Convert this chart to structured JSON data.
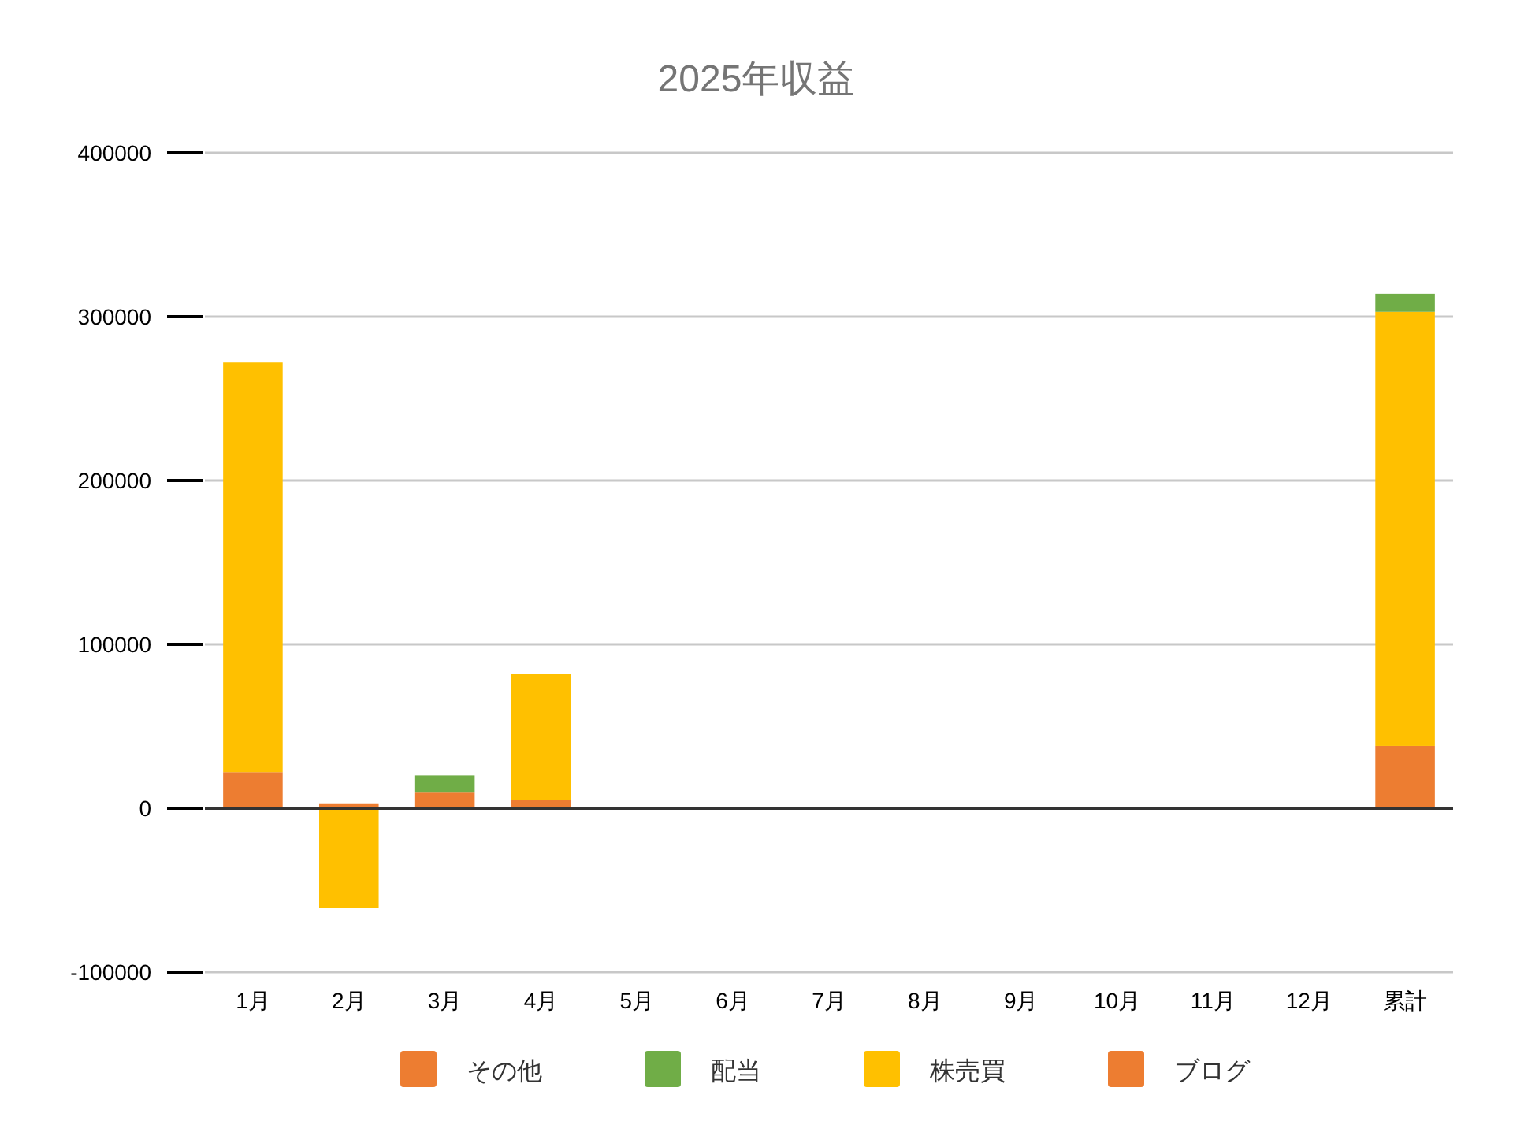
{
  "chart_data": {
    "type": "bar",
    "title": "2025年収益",
    "stacked": true,
    "categories": [
      "1月",
      "2月",
      "3月",
      "4月",
      "5月",
      "6月",
      "7月",
      "8月",
      "9月",
      "10月",
      "11月",
      "12月",
      "累計"
    ],
    "series": [
      {
        "name": "ブログ",
        "color": "#ed7d31",
        "values": [
          22000,
          3000,
          10000,
          5000,
          0,
          0,
          0,
          0,
          0,
          0,
          0,
          0,
          38000
        ]
      },
      {
        "name": "株売買",
        "color": "#ffc000",
        "values": [
          250000,
          -61000,
          0,
          77000,
          0,
          0,
          0,
          0,
          0,
          0,
          0,
          0,
          265000
        ]
      },
      {
        "name": "配当",
        "color": "#70ad47",
        "values": [
          0,
          0,
          10000,
          0,
          0,
          0,
          0,
          0,
          0,
          0,
          0,
          0,
          11000
        ]
      },
      {
        "name": "その他",
        "color": "#ed7d31",
        "values": [
          0,
          0,
          0,
          0,
          0,
          0,
          0,
          0,
          0,
          0,
          0,
          0,
          0
        ]
      }
    ],
    "ylim": [
      -100000,
      400000
    ],
    "yticks": [
      -100000,
      0,
      100000,
      200000,
      300000,
      400000
    ],
    "grid": "y",
    "legend": "bottom"
  }
}
